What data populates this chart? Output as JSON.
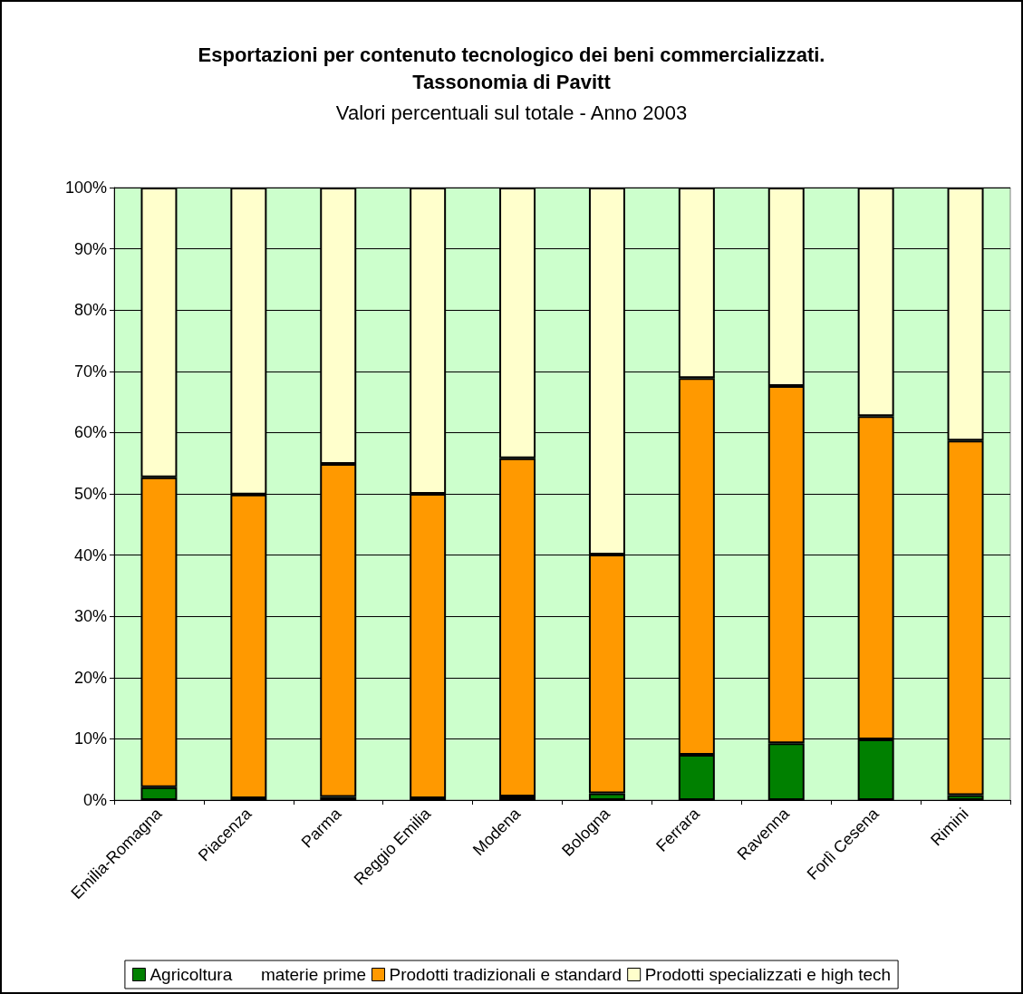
{
  "chart_data": {
    "type": "bar",
    "stacked": true,
    "title": "Esportazioni per contenuto tecnologico dei beni commercializzati.\nTassonomia di Pavitt",
    "subtitle": "Valori percentuali sul totale - Anno 2003",
    "categories": [
      "Emilia-Romagna",
      "Piacenza",
      "Parma",
      "Reggio Emilia",
      "Modena",
      "Bologna",
      "Ferrara",
      "Ravenna",
      "Forlì Cesena",
      "Rimini"
    ],
    "series": [
      {
        "name": "Agricoltura      materie prime",
        "color": "#008000",
        "values": [
          2.1,
          0.3,
          0.5,
          0.3,
          0.6,
          1.1,
          7.4,
          9.3,
          9.9,
          0.8
        ]
      },
      {
        "name": "Prodotti tradizionali e standard",
        "color": "#ff9900",
        "values": [
          50.6,
          49.6,
          54.4,
          49.7,
          55.2,
          39.0,
          61.5,
          58.3,
          52.8,
          57.9
        ]
      },
      {
        "name": "Prodotti specializzati e high tech",
        "color": "#ffffcc",
        "values": [
          47.3,
          50.1,
          45.1,
          50.0,
          44.2,
          59.9,
          31.1,
          32.4,
          37.3,
          41.3
        ]
      }
    ],
    "ylim": [
      0,
      100
    ],
    "yticks": [
      {
        "value": 0,
        "label": "0%"
      },
      {
        "value": 10,
        "label": "10%"
      },
      {
        "value": 20,
        "label": "20%"
      },
      {
        "value": 30,
        "label": "30%"
      },
      {
        "value": 40,
        "label": "40%"
      },
      {
        "value": 50,
        "label": "50%"
      },
      {
        "value": 60,
        "label": "60%"
      },
      {
        "value": 70,
        "label": "70%"
      },
      {
        "value": 80,
        "label": "80%"
      },
      {
        "value": 90,
        "label": "90%"
      },
      {
        "value": 100,
        "label": "100%"
      }
    ],
    "grid": "y",
    "legend": "bottom"
  }
}
